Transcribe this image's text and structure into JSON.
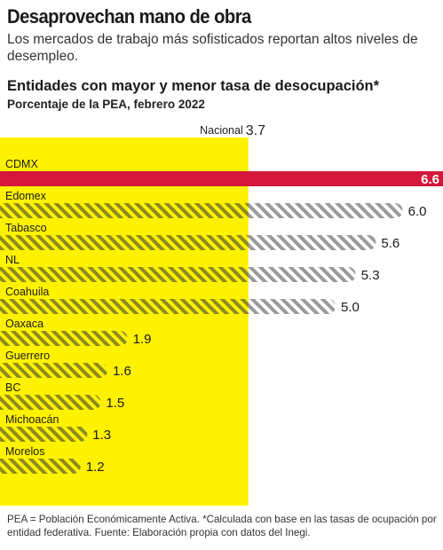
{
  "header": {
    "headline": "Desaprovechan mano de obra",
    "deck": "Los mercados de trabajo más sofisticados reportan altos niveles de desempleo."
  },
  "footnote": "PEA = Población Económicamente Activa. *Calculada con base en las tasas de ocupación por entidad federativa. Fuente: Elaboración propia con datos del Inegi.",
  "colors": {
    "highlight_band": "#fff200",
    "highlight_bar": "#d4173a",
    "bar_hatch": "#9a9a9a",
    "bar_hatch_on_yellow": "#8d8a20"
  },
  "chart_data": {
    "type": "bar",
    "orientation": "horizontal",
    "title": "Entidades con mayor y menor tasa de desocupación*",
    "subtitle": "Porcentaje de la PEA, febrero 2022",
    "categories": [
      "CDMX",
      "Edomex",
      "Tabasco",
      "NL",
      "Coahuila",
      "Oaxaca",
      "Guerrero",
      "BC",
      "Michoacán",
      "Morelos"
    ],
    "values": [
      6.6,
      6.0,
      5.6,
      5.3,
      5.0,
      1.9,
      1.6,
      1.5,
      1.3,
      1.2
    ],
    "value_labels": [
      "6.6",
      "6.0",
      "5.6",
      "5.3",
      "5.0",
      "1.9",
      "1.6",
      "1.5",
      "1.3",
      "1.2"
    ],
    "highlighted_category": "CDMX",
    "reference": {
      "label": "Nacional",
      "value": 3.7,
      "value_label": "3.7"
    },
    "xlim": [
      0,
      6.6
    ],
    "grid": false,
    "legend": "none"
  }
}
